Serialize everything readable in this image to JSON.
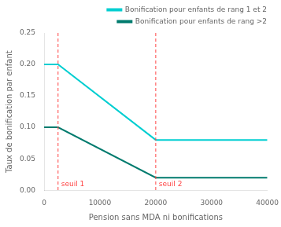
{
  "chart_data": {
    "type": "line",
    "xlabel": "Pension sans MDA ni bonifications",
    "ylabel": "Taux de bonification par enfant",
    "x": [
      0,
      2500,
      20000,
      40000
    ],
    "series": [
      {
        "name": "Bonification pour enfants de rang 1 et 2",
        "color": "#00CED1",
        "values": [
          0.2,
          0.2,
          0.08,
          0.08
        ]
      },
      {
        "name": "Bonification pour enfants de rang >2",
        "color": "#007B6E",
        "values": [
          0.1,
          0.1,
          0.02,
          0.02
        ]
      }
    ],
    "annotations": [
      {
        "x": 2500,
        "text": "seuil 1",
        "color": "#FF4444",
        "line_style": "dashed"
      },
      {
        "x": 20000,
        "text": "seuil 2",
        "color": "#FF4444",
        "line_style": "dashed"
      }
    ],
    "xlim": [
      0,
      40000
    ],
    "ylim": [
      0.0,
      0.25
    ],
    "xticks": [
      0,
      10000,
      20000,
      30000,
      40000
    ],
    "yticks": [
      {
        "value": 0.0,
        "label": "0.00"
      },
      0.05,
      {
        "value": 0.1,
        "label": "0.10"
      },
      0.15,
      {
        "value": 0.2,
        "label": "0.20"
      },
      0.25
    ],
    "grid": false,
    "legend": "upper right"
  }
}
